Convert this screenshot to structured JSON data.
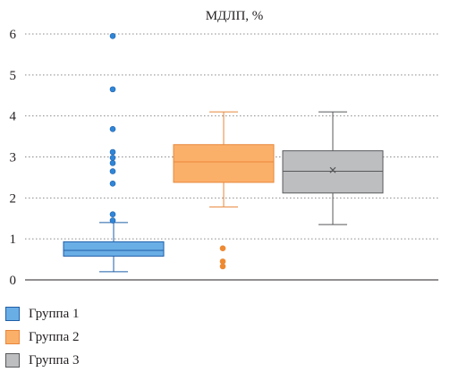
{
  "chart_data": {
    "type": "boxplot",
    "title": "МДЛП, %",
    "ylim": [
      0,
      6
    ],
    "yticks": [
      "0",
      "1",
      "2",
      "3",
      "4",
      "5",
      "6"
    ],
    "grid": "horizontal dotted",
    "legend_position": "bottom-left",
    "series": [
      {
        "name": "Группа 1",
        "fill": "#6aaee6",
        "stroke": "#1f5fa8",
        "whisker_low": 0.2,
        "q1": 0.58,
        "median": 0.72,
        "q3": 0.93,
        "whisker_high": 1.4,
        "mean": null,
        "outliers": [
          1.45,
          1.6,
          2.35,
          2.65,
          2.85,
          2.98,
          3.12,
          3.68,
          4.65,
          5.95
        ],
        "outlier_color": "#2f86d8"
      },
      {
        "name": "Группа 2",
        "fill": "#fbb06a",
        "stroke": "#e8873a",
        "whisker_low": 1.78,
        "q1": 2.38,
        "median": 2.88,
        "q3": 3.3,
        "whisker_high": 4.1,
        "mean": null,
        "outliers": [
          0.33,
          0.45,
          0.77
        ],
        "outlier_color": "#f08a2e"
      },
      {
        "name": "Группа 3",
        "fill": "#bcbec0",
        "stroke": "#58595b",
        "whisker_low": 1.35,
        "q1": 2.12,
        "median": 2.65,
        "q3": 3.15,
        "whisker_high": 4.1,
        "mean": 2.68,
        "outliers": [],
        "outlier_color": "#58595b"
      }
    ]
  }
}
